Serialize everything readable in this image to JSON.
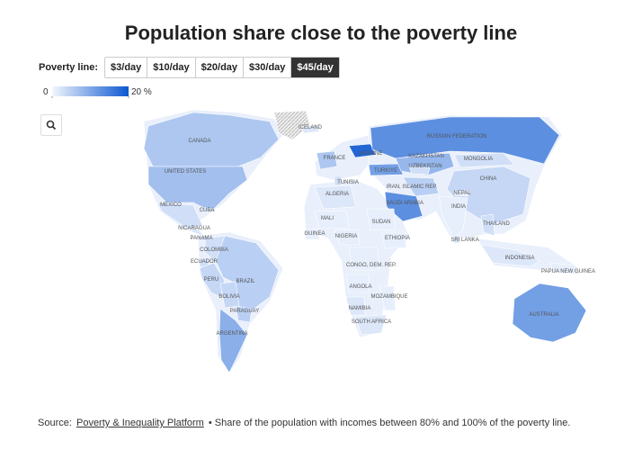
{
  "title": "Population share close to the poverty line",
  "controls": {
    "label": "Poverty line:",
    "options": [
      "$3/day",
      "$10/day",
      "$20/day",
      "$30/day",
      "$45/day"
    ],
    "selected": 4
  },
  "legend": {
    "ticks": [
      0,
      {
        "value": 20,
        "label": "20 %"
      }
    ],
    "colors": [
      "#f3f7fe",
      "#0b57d0"
    ]
  },
  "map": {
    "regions": [
      {
        "name": "CANADA",
        "value": 6
      },
      {
        "name": "UNITED STATES",
        "value": 7
      },
      {
        "name": "MEXICO",
        "value": 3
      },
      {
        "name": "CUBA",
        "value": 2
      },
      {
        "name": "NICARAGUA",
        "value": 2
      },
      {
        "name": "PANAMA",
        "value": 3
      },
      {
        "name": "COLOMBIA",
        "value": 3
      },
      {
        "name": "ECUADOR",
        "value": 3
      },
      {
        "name": "PERU",
        "value": 4
      },
      {
        "name": "BRAZIL",
        "value": 5
      },
      {
        "name": "BOLIVIA",
        "value": 4
      },
      {
        "name": "PARAGUAY",
        "value": 5
      },
      {
        "name": "ARGENTINA",
        "value": 9
      },
      {
        "name": "ICELAND",
        "value": 2
      },
      {
        "name": "FRANCE",
        "value": 6
      },
      {
        "name": "UKRAINE",
        "value": 18
      },
      {
        "name": "TURKIYE",
        "value": 11
      },
      {
        "name": "RUSSIAN FEDERATION",
        "value": 13
      },
      {
        "name": "KAZAKHSTAN",
        "value": 8
      },
      {
        "name": "UZBEKISTAN",
        "value": 3
      },
      {
        "name": "MONGOLIA",
        "value": 3
      },
      {
        "name": "CHINA",
        "value": 4
      },
      {
        "name": "IRAN, ISLAMIC REP.",
        "value": 5
      },
      {
        "name": "NEPAL",
        "value": 1
      },
      {
        "name": "INDIA",
        "value": 1
      },
      {
        "name": "TUNISIA",
        "value": 3
      },
      {
        "name": "ALGERIA",
        "value": 2
      },
      {
        "name": "SAUDI ARABIA",
        "value": 13
      },
      {
        "name": "MALI",
        "value": 1
      },
      {
        "name": "SUDAN",
        "value": 1
      },
      {
        "name": "GUINEA",
        "value": 1
      },
      {
        "name": "NIGERIA",
        "value": 1
      },
      {
        "name": "ETHIOPIA",
        "value": 1
      },
      {
        "name": "THAILAND",
        "value": 3
      },
      {
        "name": "SRI LANKA",
        "value": 2
      },
      {
        "name": "INDONESIA",
        "value": 2
      },
      {
        "name": "PAPUA NEW GUINEA",
        "value": 1
      },
      {
        "name": "CONGO, DEM. REP.",
        "value": 1
      },
      {
        "name": "ANGOLA",
        "value": 1
      },
      {
        "name": "MOZAMBIQUE",
        "value": 1
      },
      {
        "name": "NAMIBIA",
        "value": 2
      },
      {
        "name": "SOUTH AFRICA",
        "value": 2
      },
      {
        "name": "AUSTRALIA",
        "value": 11
      }
    ]
  },
  "source": {
    "prefix": "Source:",
    "link": "Poverty & Inequality Platform",
    "text": "• Share of the population with incomes between 80% and 100% of the poverty line."
  }
}
